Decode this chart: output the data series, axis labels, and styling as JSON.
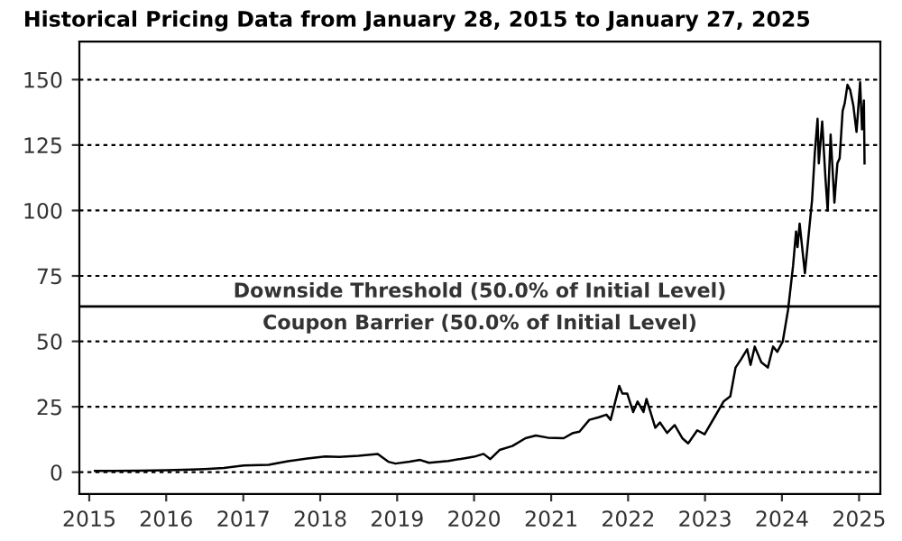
{
  "chart_data": {
    "type": "line",
    "title": "Historical Pricing Data from January 28, 2015 to January 27, 2025",
    "x": [
      "2015-01-28",
      "2015-05-01",
      "2015-09-01",
      "2016-01-04",
      "2016-05-01",
      "2016-07-01",
      "2016-10-01",
      "2017-01-03",
      "2017-05-01",
      "2017-08-01",
      "2017-11-01",
      "2018-01-25",
      "2018-04-01",
      "2018-07-01",
      "2018-10-01",
      "2018-11-20",
      "2018-12-24",
      "2019-03-01",
      "2019-04-20",
      "2019-06-01",
      "2019-09-01",
      "2019-12-31",
      "2020-02-15",
      "2020-03-18",
      "2020-05-01",
      "2020-07-01",
      "2020-09-01",
      "2020-10-20",
      "2020-12-15",
      "2021-03-01",
      "2021-04-15",
      "2021-05-15",
      "2021-07-01",
      "2021-08-15",
      "2021-09-20",
      "2021-10-10",
      "2021-11-20",
      "2021-12-05",
      "2021-12-28",
      "2022-01-25",
      "2022-02-15",
      "2022-03-15",
      "2022-03-29",
      "2022-05-10",
      "2022-06-01",
      "2022-07-05",
      "2022-08-10",
      "2022-09-15",
      "2022-10-13",
      "2022-11-25",
      "2022-12-30",
      "2023-02-15",
      "2023-03-30",
      "2023-05-01",
      "2023-05-26",
      "2023-06-20",
      "2023-07-20",
      "2023-08-05",
      "2023-08-25",
      "2023-09-25",
      "2023-10-26",
      "2023-11-20",
      "2023-12-10",
      "2024-01-05",
      "2024-01-30",
      "2024-02-23",
      "2024-03-08",
      "2024-03-15",
      "2024-03-25",
      "2024-04-19",
      "2024-05-01",
      "2024-05-23",
      "2024-06-05",
      "2024-06-18",
      "2024-06-24",
      "2024-07-10",
      "2024-07-25",
      "2024-08-05",
      "2024-08-19",
      "2024-09-06",
      "2024-09-20",
      "2024-10-01",
      "2024-10-15",
      "2024-10-25",
      "2024-11-07",
      "2024-11-20",
      "2024-12-05",
      "2024-12-20",
      "2025-01-06",
      "2025-01-15",
      "2025-01-24",
      "2025-01-27"
    ],
    "values": [
      0.5,
      0.5,
      0.6,
      0.8,
      1.0,
      1.2,
      1.6,
      2.6,
      2.8,
      4.2,
      5.2,
      6.0,
      5.8,
      6.3,
      7.0,
      4.0,
      3.3,
      4.0,
      4.7,
      3.6,
      4.3,
      5.9,
      7.0,
      5.0,
      8.5,
      10.0,
      13.0,
      14.0,
      13.2,
      13.0,
      15.0,
      15.5,
      20.0,
      21.0,
      22.0,
      20.0,
      33.0,
      30.0,
      30.0,
      23.0,
      27.0,
      23.0,
      28.0,
      17.0,
      19.0,
      15.0,
      18.0,
      13.0,
      11.0,
      16.0,
      14.5,
      21.0,
      27.0,
      29.0,
      40.0,
      43.0,
      47.0,
      41.0,
      48.0,
      42.0,
      40.0,
      48.0,
      46.0,
      50.0,
      62.0,
      79.0,
      92.0,
      86.0,
      95.0,
      76.0,
      86.0,
      104.0,
      122.0,
      135.0,
      118.0,
      134.0,
      113.0,
      100.0,
      129.0,
      103.0,
      118.0,
      120.0,
      138.0,
      141.0,
      148.0,
      146.0,
      140.0,
      130.0,
      149.0,
      131.0,
      142.0,
      118.0
    ],
    "color": "#000000",
    "ylim": [
      -8.3,
      164.5
    ],
    "yticks": [
      0,
      25,
      50,
      75,
      100,
      125,
      150
    ],
    "xlim": [
      "2014-11-15",
      "2025-04-12"
    ],
    "xticks": [
      {
        "value": "2015-01-01",
        "label": "2015"
      },
      {
        "value": "2016-01-01",
        "label": "2016"
      },
      {
        "value": "2017-01-01",
        "label": "2017"
      },
      {
        "value": "2018-01-01",
        "label": "2018"
      },
      {
        "value": "2019-01-01",
        "label": "2019"
      },
      {
        "value": "2020-01-01",
        "label": "2020"
      },
      {
        "value": "2021-01-01",
        "label": "2021"
      },
      {
        "value": "2022-01-01",
        "label": "2022"
      },
      {
        "value": "2023-01-01",
        "label": "2023"
      },
      {
        "value": "2024-01-01",
        "label": "2024"
      },
      {
        "value": "2025-01-01",
        "label": "2025"
      }
    ],
    "grid": "y",
    "line_style": "solid",
    "marker": "none",
    "legend": false,
    "ref_lines": [
      {
        "axis": "y",
        "value": 63.3,
        "label": "Downside Threshold (50.0% of Initial Level)",
        "color": "#000000"
      }
    ],
    "annotations": [
      {
        "text": "Coupon Barrier (50.0% of Initial Level)",
        "y": 63.3
      }
    ]
  }
}
